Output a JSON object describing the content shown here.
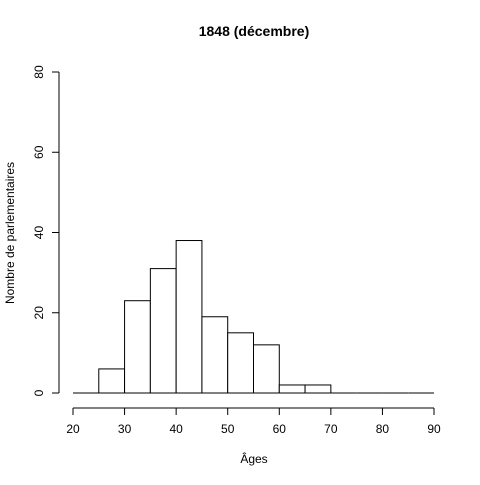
{
  "chart_data": {
    "type": "bar",
    "title": "1848 (décembre)",
    "xlabel": "Âges",
    "ylabel": "Nombre de parlementaires",
    "xlim": [
      20,
      90
    ],
    "ylim": [
      0,
      80
    ],
    "x_ticks": [
      20,
      30,
      40,
      50,
      60,
      70,
      80,
      90
    ],
    "y_ticks": [
      0,
      20,
      40,
      60,
      80
    ],
    "bin_edges": [
      20,
      25,
      30,
      35,
      40,
      45,
      50,
      55,
      60,
      65,
      70,
      75,
      80,
      85,
      90
    ],
    "categories": [
      "20-25",
      "25-30",
      "30-35",
      "35-40",
      "40-45",
      "45-50",
      "50-55",
      "55-60",
      "60-65",
      "65-70",
      "70-75",
      "75-80",
      "80-85",
      "85-90"
    ],
    "values": [
      0,
      6,
      23,
      31,
      38,
      19,
      15,
      12,
      2,
      2,
      0,
      0,
      0,
      0
    ],
    "grid": false,
    "legend": "none",
    "bar_fill": "#ffffff",
    "bar_stroke": "#000000"
  }
}
